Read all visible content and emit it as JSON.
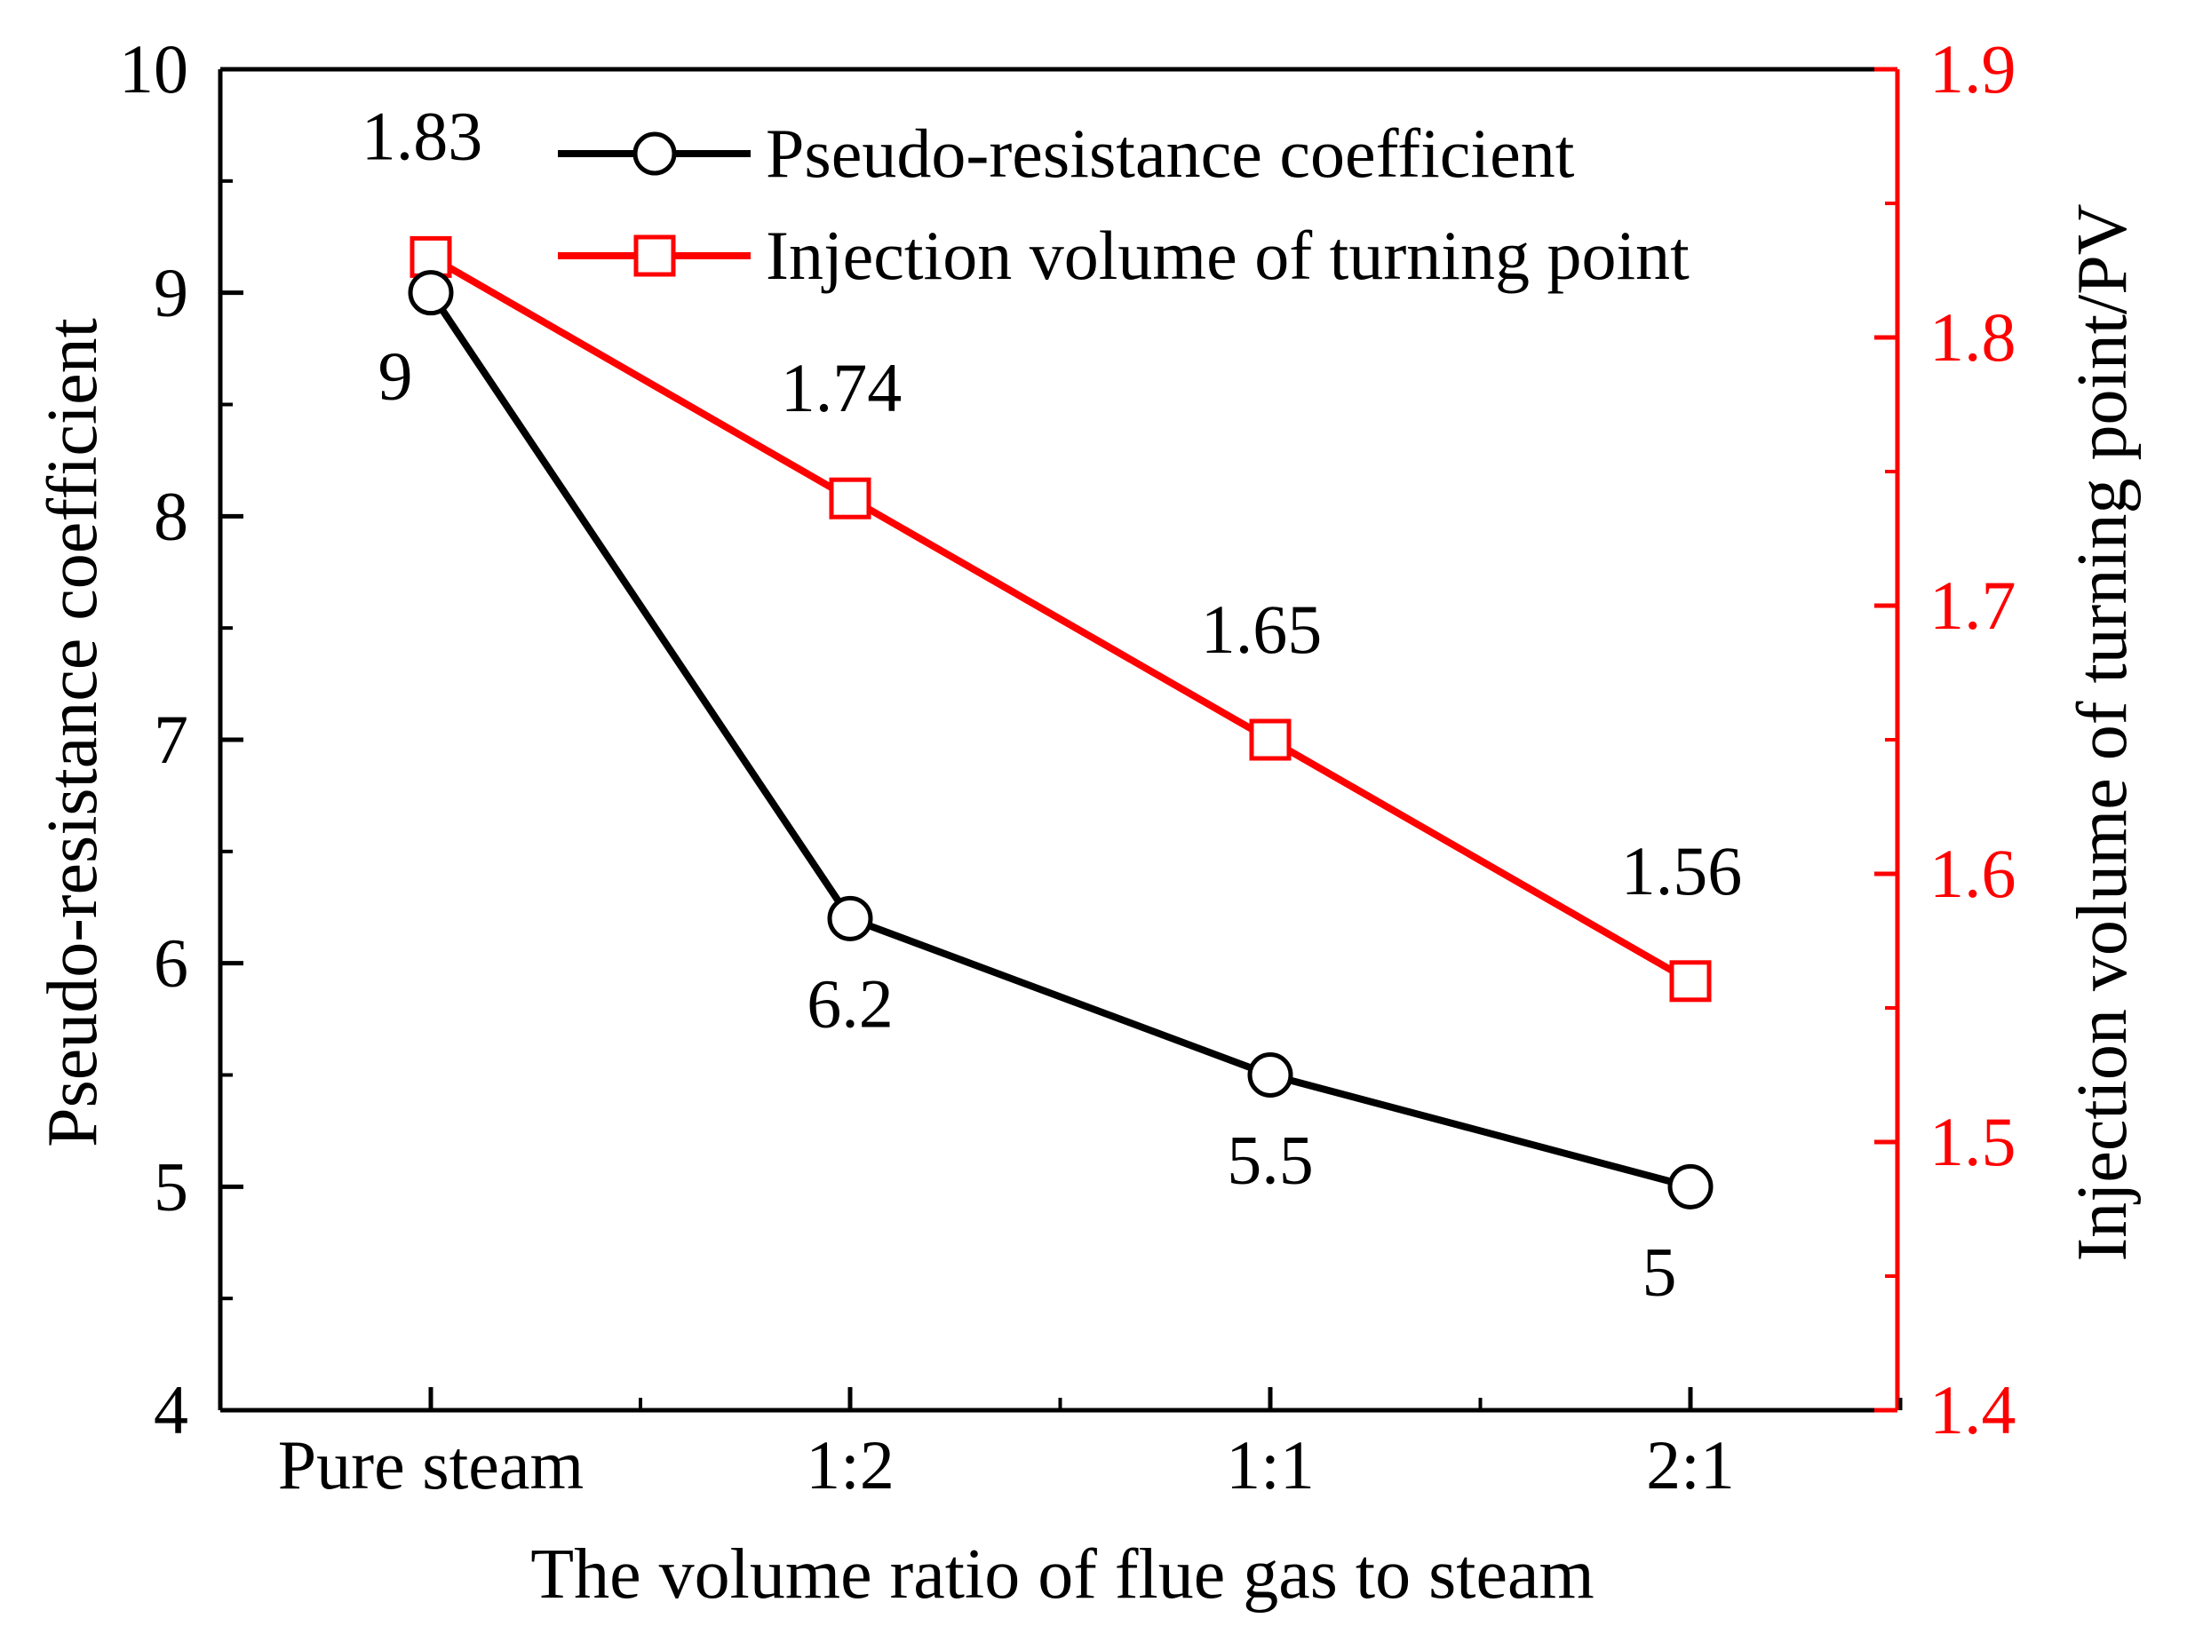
{
  "chart_data": {
    "type": "line",
    "xlabel": "The volume ratio of flue gas to steam",
    "categories": [
      "Pure steam",
      "1:2",
      "1:1",
      "2:1"
    ],
    "y_left": {
      "label": "Pseudo-resistance coefficient",
      "range": [
        4,
        10
      ],
      "ticks": [
        4,
        5,
        6,
        7,
        8,
        9,
        10
      ],
      "color": "#000000"
    },
    "y_right": {
      "label": "Injection volume of turning point/PV",
      "range": [
        1.4,
        1.9
      ],
      "ticks": [
        "1.4",
        "1.5",
        "1.6",
        "1.7",
        "1.8",
        "1.9"
      ],
      "color": "#ff0000"
    },
    "series": [
      {
        "name": "Pseudo-resistance coefficient",
        "axis": "left",
        "marker": "circle",
        "color": "#000000",
        "values": [
          9,
          6.2,
          5.5,
          5
        ],
        "labels": [
          "9",
          "6.2",
          "5.5",
          "5"
        ]
      },
      {
        "name": "Injection volume of turning point",
        "axis": "right",
        "marker": "square",
        "color": "#ff0000",
        "values": [
          1.83,
          1.74,
          1.65,
          1.56
        ],
        "labels": [
          "1.83",
          "1.74",
          "1.65",
          "1.56"
        ]
      }
    ],
    "legend_position": "top-right",
    "grid": false
  }
}
